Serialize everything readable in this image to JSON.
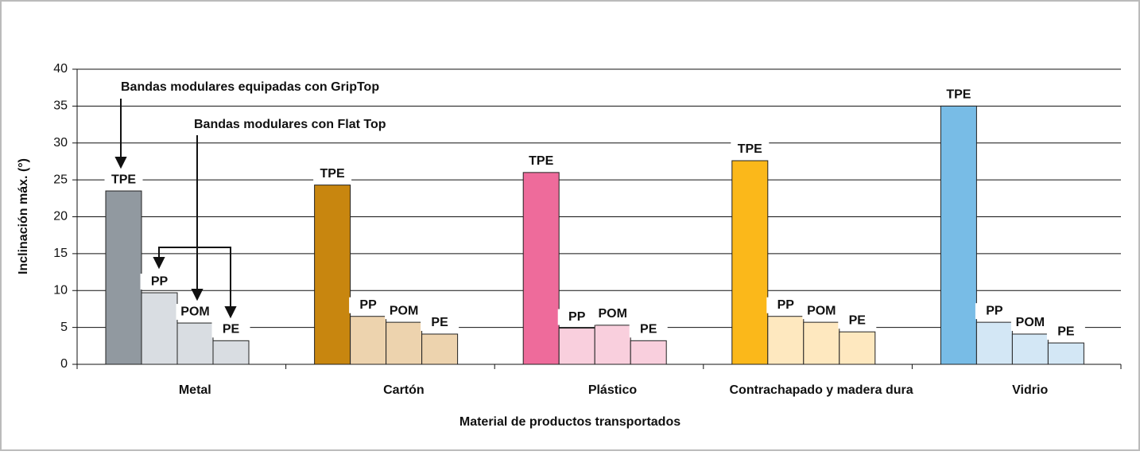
{
  "chart_data": {
    "type": "bar",
    "x_label": "Material de productos transportados",
    "y_label": "Inclinación máx. (°)",
    "categories": [
      "Metal",
      "Cartón",
      "Plástico",
      "Contrachapado y madera dura",
      "Vidrio"
    ],
    "series": [
      {
        "name": "TPE",
        "colors": [
          "#9199a0",
          "#c8860f",
          "#ee6b9b",
          "#fbb81a",
          "#78bce6"
        ],
        "values": [
          23.5,
          24.3,
          26,
          27.6,
          35
        ]
      },
      {
        "name": "PP",
        "colors": [
          "#d9dde2",
          "#edd3ae",
          "#f9cfdd",
          "#fee8bf",
          "#d3e7f5"
        ],
        "values": [
          9.7,
          6.5,
          4.9,
          6.5,
          5.7
        ]
      },
      {
        "name": "POM",
        "colors": [
          "#d9dde2",
          "#edd3ae",
          "#f9cfdd",
          "#fee8bf",
          "#d3e7f5"
        ],
        "values": [
          5.6,
          5.7,
          5.3,
          5.7,
          4.1
        ]
      },
      {
        "name": "PE",
        "colors": [
          "#d9dde2",
          "#edd3ae",
          "#f9cfdd",
          "#fee8bf",
          "#d3e7f5"
        ],
        "values": [
          3.2,
          4.1,
          3.2,
          4.4,
          2.9
        ]
      }
    ],
    "annotations": [
      "Bandas modulares equipadas con GripTop",
      "Bandas modulares con Flat Top"
    ],
    "ylim": [
      0,
      40
    ],
    "yticks": [
      0,
      5,
      10,
      15,
      20,
      25,
      30,
      35,
      40
    ],
    "grid": true
  }
}
